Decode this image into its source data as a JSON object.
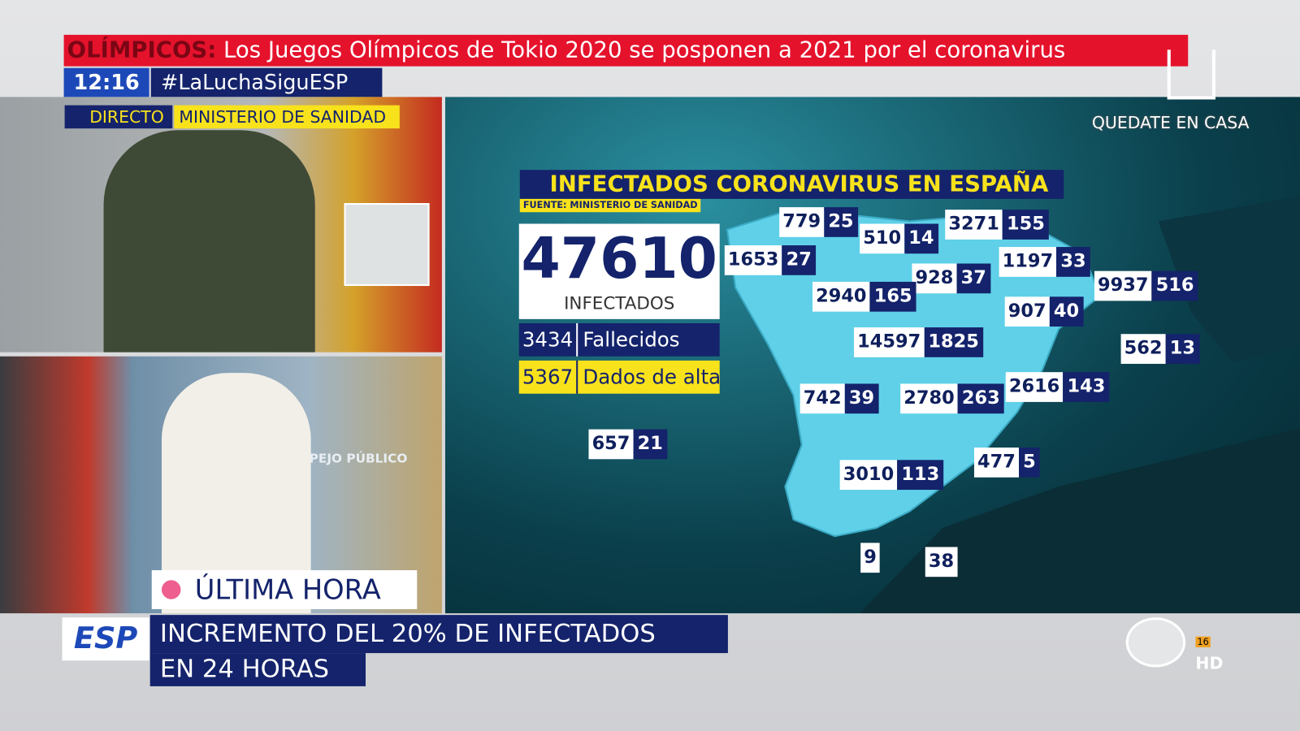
{
  "ticker": {
    "label": "OLÍMPICOS:",
    "text": "Los Juegos Olímpicos de Tokio 2020 se posponen a 2021 por el coronavirus"
  },
  "clock": "12:16",
  "hashtag": "#LaLuchaSiguESP",
  "live": {
    "tag": "DIRECTO",
    "source": "MINISTERIO DE SANIDAD"
  },
  "studio_logo": "ESPEJO PÚBLICO",
  "breaking": "ÚLTIMA HORA",
  "corner": "QUEDATE EN CASA",
  "map": {
    "title": "INFECTADOS CORONAVIRUS EN ESPAÑA",
    "source": "FUENTE: MINISTERIO DE SANIDAD",
    "total": 47610,
    "total_label": "INFECTADOS",
    "deaths": 3434,
    "deaths_label": "Fallecidos",
    "recovered": 5367,
    "recovered_label": "Dados de alta",
    "regions": [
      {
        "cases": 779,
        "deaths": 25
      },
      {
        "cases": 510,
        "deaths": 14
      },
      {
        "cases": 3271,
        "deaths": 155
      },
      {
        "cases": 1653,
        "deaths": 27
      },
      {
        "cases": 1197,
        "deaths": 33
      },
      {
        "cases": 928,
        "deaths": 37
      },
      {
        "cases": 2940,
        "deaths": 165
      },
      {
        "cases": 9937,
        "deaths": 516
      },
      {
        "cases": 907,
        "deaths": 40
      },
      {
        "cases": 14597,
        "deaths": 1825
      },
      {
        "cases": 562,
        "deaths": 13
      },
      {
        "cases": 742,
        "deaths": 39
      },
      {
        "cases": 2780,
        "deaths": 263
      },
      {
        "cases": 2616,
        "deaths": 143
      },
      {
        "cases": 657,
        "deaths": 21
      },
      {
        "cases": 477,
        "deaths": 5
      },
      {
        "cases": 3010,
        "deaths": 113
      },
      {
        "cases": 9
      },
      {
        "cases": 38
      }
    ]
  },
  "lower_third": {
    "logo": "ESP",
    "line1": "INCREMENTO DEL 20% DE INFECTADOS",
    "line2": "EN 24 HORAS"
  },
  "channel": {
    "rating": "16",
    "quality": "HD"
  }
}
